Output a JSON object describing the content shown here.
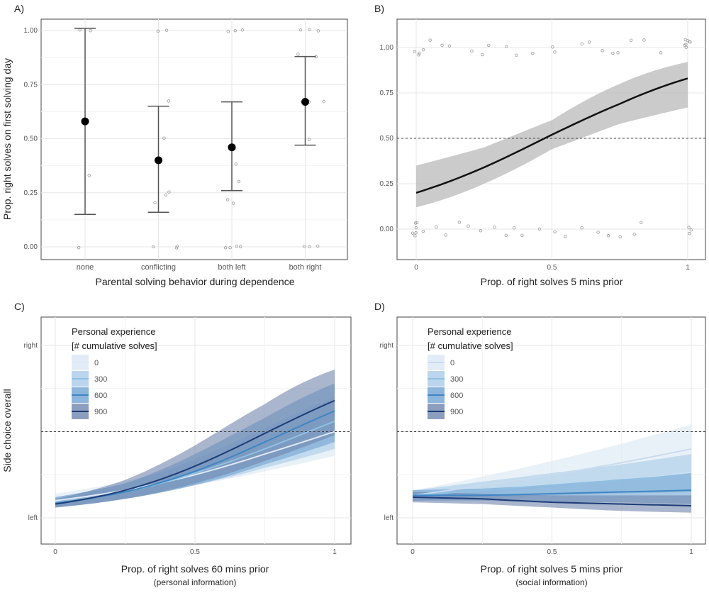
{
  "chart_data": [
    {
      "panel": "A)",
      "type": "scatter",
      "xlabel": "Parental solving behavior during dependence",
      "ylabel": "Prop. right solves on first solving day",
      "categories": [
        "none",
        "conflicting",
        "both left",
        "both right"
      ],
      "yticks": [
        "0.00",
        "0.25",
        "0.50",
        "0.75",
        "1.00"
      ],
      "ylim": [
        -0.05,
        1.05
      ],
      "grid": true,
      "means": [
        0.58,
        0.4,
        0.46,
        0.67
      ],
      "ci_lower": [
        0.15,
        0.16,
        0.26,
        0.47
      ],
      "ci_upper": [
        1.01,
        0.65,
        0.67,
        0.88
      ],
      "raw_points": [
        [
          0,
          1.0
        ],
        [
          0,
          1.0
        ],
        [
          0,
          0.33
        ],
        [
          0,
          0.0
        ],
        [
          1,
          1.0
        ],
        [
          1,
          1.0
        ],
        [
          1,
          0.67
        ],
        [
          1,
          0.5
        ],
        [
          1,
          0.25
        ],
        [
          1,
          0.24
        ],
        [
          1,
          0.2
        ],
        [
          1,
          0.0
        ],
        [
          1,
          0.0
        ],
        [
          1,
          0.0
        ],
        [
          2,
          1.0
        ],
        [
          2,
          1.0
        ],
        [
          2,
          1.0
        ],
        [
          2,
          0.38
        ],
        [
          2,
          0.3
        ],
        [
          2,
          0.22
        ],
        [
          2,
          0.2
        ],
        [
          2,
          0.0
        ],
        [
          2,
          0.0
        ],
        [
          2,
          0.0
        ],
        [
          2,
          0.0
        ],
        [
          3,
          1.0
        ],
        [
          3,
          1.0
        ],
        [
          3,
          1.0
        ],
        [
          3,
          0.89
        ],
        [
          3,
          0.88
        ],
        [
          3,
          0.67
        ],
        [
          3,
          0.67
        ],
        [
          3,
          0.5
        ],
        [
          3,
          0.0
        ],
        [
          3,
          0.0
        ],
        [
          3,
          0.0
        ]
      ]
    },
    {
      "panel": "B)",
      "type": "line",
      "xlabel": "Prop. of right solves 5 mins prior",
      "ylabel": "",
      "xticks": [
        "0",
        "0.5",
        "1"
      ],
      "yticks": [
        "0.00",
        "0.25",
        "0.50",
        "0.75",
        "1.00"
      ],
      "xlim": [
        -0.05,
        1.05
      ],
      "ylim": [
        -0.1,
        1.1
      ],
      "reference_line": 0.5,
      "grid": true,
      "x": [
        0,
        0.25,
        0.5,
        0.75,
        1
      ],
      "fit": [
        0.2,
        0.34,
        0.52,
        0.69,
        0.83
      ],
      "lower": [
        0.12,
        0.25,
        0.44,
        0.58,
        0.67
      ],
      "upper": [
        0.35,
        0.45,
        0.6,
        0.8,
        0.92
      ],
      "raw_points": [
        [
          0,
          1
        ],
        [
          0,
          1
        ],
        [
          0,
          1
        ],
        [
          0.02,
          1
        ],
        [
          0.05,
          1
        ],
        [
          0.1,
          1
        ],
        [
          0.13,
          1
        ],
        [
          0.2,
          1
        ],
        [
          0.25,
          1
        ],
        [
          0.28,
          1
        ],
        [
          0.33,
          1
        ],
        [
          0.38,
          1
        ],
        [
          0.43,
          1
        ],
        [
          0.5,
          1
        ],
        [
          0.52,
          1
        ],
        [
          0.6,
          1
        ],
        [
          0.65,
          1
        ],
        [
          0.68,
          1
        ],
        [
          0.72,
          1
        ],
        [
          0.75,
          1
        ],
        [
          0.8,
          1
        ],
        [
          0.85,
          1
        ],
        [
          0.9,
          1
        ],
        [
          1,
          1
        ],
        [
          1,
          1
        ],
        [
          1,
          1
        ],
        [
          1,
          1
        ],
        [
          1,
          1
        ],
        [
          1,
          1
        ],
        [
          1,
          1
        ],
        [
          0,
          0
        ],
        [
          0,
          0
        ],
        [
          0,
          0
        ],
        [
          0,
          0
        ],
        [
          0,
          0
        ],
        [
          0,
          0
        ],
        [
          0.02,
          0
        ],
        [
          0.08,
          0
        ],
        [
          0.12,
          0
        ],
        [
          0.17,
          0
        ],
        [
          0.2,
          0
        ],
        [
          0.25,
          0
        ],
        [
          0.29,
          0
        ],
        [
          0.33,
          0
        ],
        [
          0.36,
          0
        ],
        [
          0.4,
          0
        ],
        [
          0.45,
          0
        ],
        [
          0.5,
          0
        ],
        [
          0.55,
          0
        ],
        [
          0.6,
          0
        ],
        [
          0.67,
          0
        ],
        [
          0.7,
          0
        ],
        [
          0.75,
          0
        ],
        [
          0.8,
          0
        ],
        [
          0.83,
          0
        ],
        [
          1,
          0
        ],
        [
          1,
          0
        ],
        [
          1,
          0
        ]
      ]
    },
    {
      "panel": "C)",
      "type": "line",
      "xlabel": "Prop. of right solves 60 mins prior",
      "xlabel2": "(personal information)",
      "ylabel": "Side choice overall",
      "xticks": [
        "0",
        "0.5",
        "1"
      ],
      "yticks": [
        "left",
        "right"
      ],
      "reference_line": 0.5,
      "grid": true,
      "legend": {
        "title1": "Personal experience",
        "title2": "[# cumulative solves]",
        "placement": "top-left"
      },
      "x": [
        0,
        0.25,
        0.5,
        0.75,
        1
      ],
      "series": [
        {
          "name": "0",
          "color": "#dde9f6",
          "fit": [
            0.1,
            0.16,
            0.25,
            0.37,
            0.5
          ],
          "lower": [
            0.07,
            0.12,
            0.19,
            0.27,
            0.36
          ],
          "upper": [
            0.14,
            0.21,
            0.32,
            0.48,
            0.62
          ]
        },
        {
          "name": "300",
          "color": "#8fc0e3",
          "fit": [
            0.09,
            0.15,
            0.26,
            0.4,
            0.56
          ],
          "lower": [
            0.06,
            0.11,
            0.19,
            0.29,
            0.4
          ],
          "upper": [
            0.12,
            0.2,
            0.34,
            0.52,
            0.7
          ]
        },
        {
          "name": "600",
          "color": "#3f86c4",
          "fit": [
            0.085,
            0.15,
            0.27,
            0.44,
            0.62
          ],
          "lower": [
            0.06,
            0.11,
            0.19,
            0.31,
            0.44
          ],
          "upper": [
            0.12,
            0.2,
            0.37,
            0.58,
            0.78
          ]
        },
        {
          "name": "900",
          "color": "#1d3c78",
          "fit": [
            0.08,
            0.16,
            0.3,
            0.49,
            0.68
          ],
          "lower": [
            0.06,
            0.11,
            0.2,
            0.33,
            0.48
          ],
          "upper": [
            0.11,
            0.22,
            0.42,
            0.66,
            0.86
          ]
        }
      ]
    },
    {
      "panel": "D)",
      "type": "line",
      "xlabel": "Prop. of right solves 5 mins prior",
      "xlabel2": "(social information)",
      "ylabel": "",
      "xticks": [
        "0",
        "0.5",
        "1"
      ],
      "yticks": [
        "left",
        "right"
      ],
      "reference_line": 0.5,
      "grid": true,
      "legend": {
        "title1": "Personal experience",
        "title2": "[# cumulative solves]",
        "placement": "top-left"
      },
      "x": [
        0,
        0.25,
        0.5,
        0.75,
        1
      ],
      "series": [
        {
          "name": "0",
          "color": "#c9dbef",
          "fit": [
            0.13,
            0.19,
            0.25,
            0.32,
            0.4
          ],
          "lower": [
            0.1,
            0.14,
            0.18,
            0.22,
            0.27
          ],
          "upper": [
            0.16,
            0.24,
            0.33,
            0.43,
            0.54
          ]
        },
        {
          "name": "300",
          "color": "#8fc0e3",
          "fit": [
            0.13,
            0.16,
            0.19,
            0.22,
            0.25
          ],
          "lower": [
            0.1,
            0.12,
            0.13,
            0.14,
            0.15
          ],
          "upper": [
            0.16,
            0.21,
            0.26,
            0.31,
            0.37
          ]
        },
        {
          "name": "600",
          "color": "#3f86c4",
          "fit": [
            0.13,
            0.13,
            0.14,
            0.15,
            0.16
          ],
          "lower": [
            0.1,
            0.1,
            0.09,
            0.09,
            0.08
          ],
          "upper": [
            0.16,
            0.17,
            0.19,
            0.22,
            0.26
          ]
        },
        {
          "name": "900",
          "color": "#1d3c78",
          "fit": [
            0.12,
            0.11,
            0.09,
            0.08,
            0.07
          ],
          "lower": [
            0.09,
            0.08,
            0.06,
            0.04,
            0.03
          ],
          "upper": [
            0.15,
            0.14,
            0.13,
            0.13,
            0.13
          ]
        }
      ]
    }
  ]
}
